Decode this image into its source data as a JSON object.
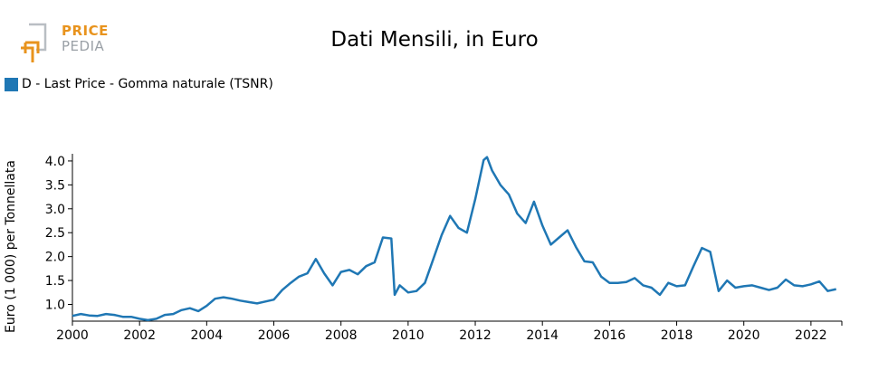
{
  "logo": {
    "line1": "PRICE",
    "line2": "PEDIA"
  },
  "chart_data": {
    "type": "line",
    "title": "Dati Mensili, in Euro",
    "xlabel": "",
    "ylabel": "Euro (1 000) per Tonnellata",
    "xlim": [
      2000,
      2022.92
    ],
    "ylim": [
      0.65,
      4.15
    ],
    "xticks": [
      2000,
      2002,
      2004,
      2006,
      2008,
      2010,
      2012,
      2014,
      2016,
      2018,
      2020,
      2022
    ],
    "xtick_labels": [
      "2000",
      "2002",
      "2004",
      "2006",
      "2008",
      "2010",
      "2012",
      "2014",
      "2016",
      "2018",
      "2020",
      "2022"
    ],
    "yticks": [
      1.0,
      1.5,
      2.0,
      2.5,
      3.0,
      3.5,
      4.0
    ],
    "ytick_labels": [
      "1.0",
      "1.5",
      "2.0",
      "2.5",
      "3.0",
      "3.5",
      "4.0"
    ],
    "legend_position": "top-left",
    "colors": {
      "series": "#1f77b4"
    },
    "series": [
      {
        "name": "D - Last Price - Gomma naturale (TSNR)",
        "points": [
          [
            2000.0,
            0.76
          ],
          [
            2000.25,
            0.8
          ],
          [
            2000.5,
            0.77
          ],
          [
            2000.75,
            0.76
          ],
          [
            2001.0,
            0.8
          ],
          [
            2001.25,
            0.78
          ],
          [
            2001.5,
            0.74
          ],
          [
            2001.75,
            0.74
          ],
          [
            2002.0,
            0.7
          ],
          [
            2002.25,
            0.67
          ],
          [
            2002.5,
            0.7
          ],
          [
            2002.75,
            0.78
          ],
          [
            2003.0,
            0.8
          ],
          [
            2003.25,
            0.88
          ],
          [
            2003.5,
            0.92
          ],
          [
            2003.75,
            0.86
          ],
          [
            2004.0,
            0.97
          ],
          [
            2004.25,
            1.12
          ],
          [
            2004.5,
            1.15
          ],
          [
            2004.75,
            1.12
          ],
          [
            2005.0,
            1.08
          ],
          [
            2005.25,
            1.05
          ],
          [
            2005.5,
            1.02
          ],
          [
            2005.75,
            1.06
          ],
          [
            2006.0,
            1.1
          ],
          [
            2006.25,
            1.3
          ],
          [
            2006.5,
            1.45
          ],
          [
            2006.75,
            1.58
          ],
          [
            2007.0,
            1.65
          ],
          [
            2007.25,
            1.95
          ],
          [
            2007.5,
            1.65
          ],
          [
            2007.75,
            1.4
          ],
          [
            2008.0,
            1.68
          ],
          [
            2008.25,
            1.72
          ],
          [
            2008.5,
            1.63
          ],
          [
            2008.75,
            1.8
          ],
          [
            2009.0,
            1.88
          ],
          [
            2009.25,
            2.4
          ],
          [
            2009.5,
            2.38
          ],
          [
            2009.6,
            1.2
          ],
          [
            2009.75,
            1.4
          ],
          [
            2010.0,
            1.25
          ],
          [
            2010.25,
            1.28
          ],
          [
            2010.5,
            1.45
          ],
          [
            2010.75,
            1.95
          ],
          [
            2011.0,
            2.45
          ],
          [
            2011.25,
            2.85
          ],
          [
            2011.5,
            2.6
          ],
          [
            2011.75,
            2.5
          ],
          [
            2012.0,
            3.2
          ],
          [
            2012.25,
            4.02
          ],
          [
            2012.35,
            4.08
          ],
          [
            2012.5,
            3.8
          ],
          [
            2012.75,
            3.5
          ],
          [
            2013.0,
            3.3
          ],
          [
            2013.25,
            2.9
          ],
          [
            2013.5,
            2.7
          ],
          [
            2013.75,
            3.15
          ],
          [
            2014.0,
            2.65
          ],
          [
            2014.25,
            2.25
          ],
          [
            2014.5,
            2.4
          ],
          [
            2014.75,
            2.55
          ],
          [
            2015.0,
            2.2
          ],
          [
            2015.25,
            1.9
          ],
          [
            2015.5,
            1.88
          ],
          [
            2015.75,
            1.58
          ],
          [
            2016.0,
            1.45
          ],
          [
            2016.25,
            1.45
          ],
          [
            2016.5,
            1.47
          ],
          [
            2016.75,
            1.55
          ],
          [
            2017.0,
            1.4
          ],
          [
            2017.25,
            1.35
          ],
          [
            2017.5,
            1.2
          ],
          [
            2017.75,
            1.45
          ],
          [
            2018.0,
            1.38
          ],
          [
            2018.25,
            1.4
          ],
          [
            2018.5,
            1.8
          ],
          [
            2018.75,
            2.18
          ],
          [
            2019.0,
            2.1
          ],
          [
            2019.25,
            1.28
          ],
          [
            2019.5,
            1.5
          ],
          [
            2019.75,
            1.35
          ],
          [
            2020.0,
            1.38
          ],
          [
            2020.25,
            1.4
          ],
          [
            2020.5,
            1.35
          ],
          [
            2020.75,
            1.3
          ],
          [
            2021.0,
            1.35
          ],
          [
            2021.25,
            1.52
          ],
          [
            2021.5,
            1.4
          ],
          [
            2021.75,
            1.38
          ],
          [
            2022.0,
            1.42
          ],
          [
            2022.25,
            1.48
          ],
          [
            2022.5,
            1.28
          ],
          [
            2022.75,
            1.32
          ]
        ]
      }
    ]
  }
}
